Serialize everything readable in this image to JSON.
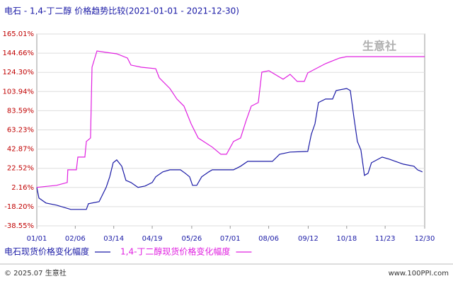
{
  "chart_data": {
    "type": "line",
    "title": "电石 - 1,4-丁二醇 价格趋势比较(2021-01-01 - 2021-12-30)",
    "watermark": "生意社",
    "footer_left": "© 2025.07 生意社",
    "footer_right": "www.100PPI.com",
    "xlim": [
      0,
      363
    ],
    "xticks": [
      {
        "value": 0,
        "label": "01/01"
      },
      {
        "value": 36,
        "label": "02/06"
      },
      {
        "value": 72,
        "label": "03/14"
      },
      {
        "value": 108,
        "label": "04/19"
      },
      {
        "value": 145,
        "label": "05/26"
      },
      {
        "value": 181,
        "label": "07/01"
      },
      {
        "value": 217,
        "label": "08/06"
      },
      {
        "value": 254,
        "label": "09/12"
      },
      {
        "value": 290,
        "label": "10/18"
      },
      {
        "value": 326,
        "label": "11/23"
      },
      {
        "value": 363,
        "label": "12/30"
      }
    ],
    "ylim": [
      -38.55,
      165.01
    ],
    "yticks": [
      {
        "value": -38.55,
        "label": "-38.55%"
      },
      {
        "value": -18.2,
        "label": "-18.20%"
      },
      {
        "value": 2.16,
        "label": "2.16%"
      },
      {
        "value": 22.52,
        "label": "22.52%"
      },
      {
        "value": 42.87,
        "label": "42.87%"
      },
      {
        "value": 63.23,
        "label": "63.23%"
      },
      {
        "value": 83.59,
        "label": "83.59%"
      },
      {
        "value": 103.94,
        "label": "103.94%"
      },
      {
        "value": 124.3,
        "label": "124.30%"
      },
      {
        "value": 144.66,
        "label": "144.66%"
      },
      {
        "value": 165.01,
        "label": "165.01%"
      }
    ],
    "grid": true,
    "series": [
      {
        "name": "电石现货价格变化幅度",
        "color": "#1a1aa6",
        "x": [
          0,
          2,
          8.6,
          18.5,
          31.8,
          46.4,
          48.3,
          58.3,
          64.9,
          68.2,
          71.5,
          74.8,
          79.5,
          83.4,
          88.1,
          94.7,
          101.3,
          108,
          111.3,
          117.9,
          124.5,
          134.4,
          139,
          143,
          145.7,
          149.7,
          154.3,
          160.9,
          164.2,
          170.9,
          184.1,
          190.7,
          197.4,
          220.5,
          227.2,
          237.1,
          253.6,
          256.9,
          260.3,
          263.6,
          270.2,
          276.8,
          280.1,
          290,
          293.4,
          296.7,
          300,
          303.3,
          306.6,
          310,
          313.2,
          323.2,
          329.8,
          343,
          352.9,
          356.3,
          360.9
        ],
        "values": [
          2.2,
          -9.1,
          -14.4,
          -16.6,
          -21.1,
          -21.1,
          -15.1,
          -12.9,
          2.2,
          13.4,
          28.4,
          31.4,
          24.7,
          9.7,
          7.4,
          2.2,
          3.7,
          7.4,
          13.4,
          18.7,
          20.9,
          20.9,
          17.2,
          13.4,
          4.4,
          4.4,
          13.4,
          18.7,
          20.9,
          20.9,
          20.9,
          24.7,
          29.9,
          29.9,
          37.4,
          39.7,
          40.4,
          58.5,
          69.7,
          92.2,
          96.0,
          96.0,
          105.0,
          107.2,
          105.0,
          77.2,
          51.0,
          41.9,
          14.9,
          17.2,
          28.4,
          34.4,
          32.2,
          26.9,
          24.7,
          20.9,
          18.7
        ]
      },
      {
        "name": "1,4-丁二醇现货价格变化幅度",
        "color": "#e020e0",
        "x": [
          0,
          18.5,
          28.5,
          29,
          37,
          38.4,
          45,
          46.4,
          50.3,
          51.7,
          56.3,
          64.9,
          74.8,
          84.8,
          88.1,
          98,
          111.3,
          114.6,
          124.5,
          131.1,
          137.7,
          144.4,
          151,
          164.2,
          172.2,
          177.5,
          184.1,
          190.7,
          196,
          200.7,
          207.3,
          210.6,
          217.2,
          230.5,
          237.1,
          243.7,
          250.3,
          253.6,
          270.2,
          283.4,
          290,
          363
        ],
        "values": [
          2.2,
          4.4,
          7.4,
          20.9,
          20.9,
          34.4,
          34.4,
          51.0,
          54.7,
          129.7,
          147.0,
          145.5,
          144.0,
          139.5,
          132.0,
          129.7,
          128.2,
          118.5,
          107.2,
          96.0,
          88.5,
          69.7,
          54.7,
          45.0,
          37.4,
          37.4,
          51.0,
          54.7,
          73.5,
          88.5,
          92.2,
          124.5,
          126.0,
          117.0,
          122.2,
          114.7,
          114.7,
          123.7,
          133.5,
          139.5,
          141.0,
          141.0
        ]
      }
    ]
  }
}
